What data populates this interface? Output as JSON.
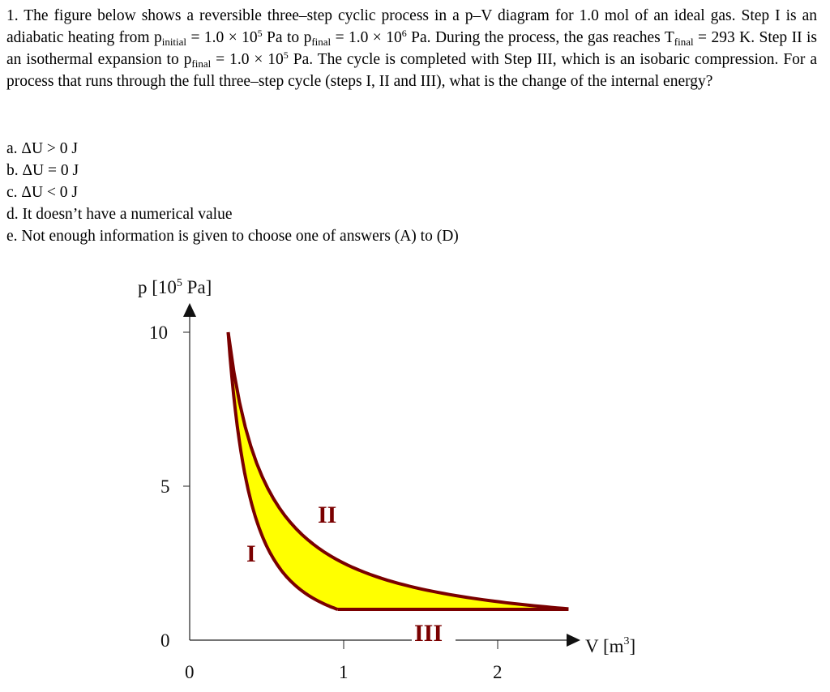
{
  "question": {
    "number": "1.",
    "part1": "The figure below shows a reversible three–step cyclic process in a p–V diagram for 1.0 mol of an ideal gas. Step I is an adiabatic heating from p",
    "sub_initial": "initial",
    "part2": " = 1.0 × 10",
    "exp5a": "5",
    "part3": " Pa to p",
    "sub_final1": "final",
    "part4": " = 1.0 × 10",
    "exp6": "6",
    "part5": " Pa. During the process, the gas reaches T",
    "sub_final2": "final",
    "part6": " = 293 K. Step II is an isothermal expansion to p",
    "sub_final3": "final",
    "part7": " = 1.0 × 10",
    "exp5b": "5",
    "part8": " Pa. The cycle is completed with Step III, which is an isobaric compression. For a process that runs through the full three–step cycle (steps I, II and III), what is the change of the internal energy?"
  },
  "options": [
    "a. ΔU > 0 J",
    "b. ΔU = 0 J",
    "c. ΔU < 0 J",
    "d. It doesn’t have a numerical value",
    "e. Not enough information is given to choose one of answers (A) to (D)"
  ],
  "figure": {
    "y_label": "p [10",
    "y_label_exp": "5",
    "y_label_end": " Pa]",
    "x_label": "V [m",
    "x_label_exp": "3",
    "x_label_end": "]",
    "y_ticks": [
      "10",
      "5",
      "0"
    ],
    "x_ticks": [
      "0",
      "1",
      "2"
    ],
    "step_labels": [
      "I",
      "II",
      "III"
    ],
    "colors": {
      "curve": "#7a0000",
      "fill": "#ffff00",
      "axis": "#222222"
    }
  },
  "chart_data": {
    "type": "line",
    "xlabel": "V [m3]",
    "ylabel": "p [10^5 Pa]",
    "xlim": [
      0,
      2.6
    ],
    "ylim": [
      0,
      10
    ],
    "x_ticks": [
      0,
      1,
      2
    ],
    "y_ticks": [
      0,
      5,
      10
    ],
    "series": [
      {
        "name": "I",
        "kind": "adiabatic",
        "x": [
          0.96,
          0.25
        ],
        "y": [
          1.0,
          10.0
        ]
      },
      {
        "name": "II",
        "kind": "isothermal",
        "x": [
          0.25,
          2.46
        ],
        "y": [
          10.0,
          1.0
        ]
      },
      {
        "name": "III",
        "kind": "isobaric",
        "x": [
          2.46,
          0.96
        ],
        "y": [
          1.0,
          1.0
        ]
      }
    ]
  }
}
